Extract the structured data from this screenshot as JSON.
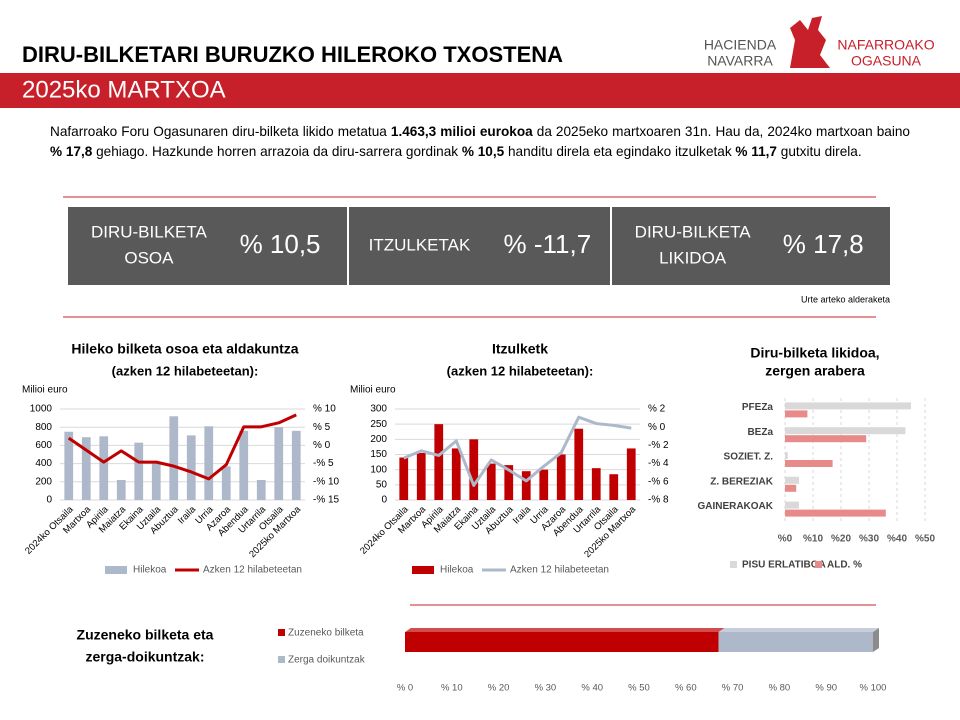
{
  "header": {
    "title": "DIRU-BILKETARI BURUZKO HILEROKO TXOSTENA",
    "subtitle": "2025ko MARTXOA",
    "logo_left": [
      "HACIENDA",
      "NAVARRA"
    ],
    "logo_right": [
      "NAFARROAKO",
      "OGASUNA"
    ]
  },
  "intro": [
    "Nafarroako Foru Ogasunaren diru-bilketa likido metatua ",
    "1.463,3 milioi eurokoa",
    " da 2025eko martxoaren 31n. Hau da, 2024ko martxoan baino ",
    "% 17,8",
    " gehiago. Hazkunde horren arrazoia da diru-sarrera gordinak ",
    "% 10,5",
    " handitu direla eta egindako itzulketak ",
    "% 11,7",
    " gutxitu direla."
  ],
  "kpis": [
    {
      "label": [
        "DIRU-BILKETA",
        "OSOA"
      ],
      "value": "% 10,5"
    },
    {
      "label": [
        "ITZULKETAK"
      ],
      "value": "% -11,7"
    },
    {
      "label": [
        "DIRU-BILKETA",
        "LIKIDOA"
      ],
      "value": "% 17,8"
    }
  ],
  "kpi_note": "Urte arteko alderaketa",
  "chart_data": [
    {
      "type": "combo",
      "title": [
        "Hileko bilketa osoa eta aldakuntza",
        "(azken 12 hilabeteetan):"
      ],
      "y_label": "Milioi euro",
      "categories": [
        "2024ko Otsaila",
        "Martxoa",
        "Apirila",
        "Maiatza",
        "Ekaina",
        "Uztaila",
        "Abuztua",
        "Iraila",
        "Urria",
        "Azaroa",
        "Abendua",
        "Urtarrila",
        "Otsaila",
        "2025ko Martxoa"
      ],
      "series": [
        {
          "name": "Hilekoa",
          "color": "#adb9ca",
          "mark": "bar",
          "values": [
            750,
            690,
            700,
            220,
            630,
            420,
            920,
            710,
            810,
            370,
            760,
            220,
            800,
            760
          ]
        },
        {
          "name": "Azken 12 hilabeteetan",
          "color": "#c00000",
          "mark": "line",
          "axis": "y2",
          "values": [
            2.0,
            -1.3,
            -4.6,
            -1.5,
            -4.6,
            -4.6,
            -5.7,
            -7.3,
            -9.2,
            -5.3,
            5.1,
            5.1,
            6.2,
            8.4
          ]
        }
      ],
      "ylim": [
        0,
        1000
      ],
      "yticks": [
        0,
        200,
        400,
        600,
        800,
        1000
      ],
      "y2lim": [
        -15,
        10
      ],
      "y2ticks": [
        {
          "value": 10,
          "label": "% 10"
        },
        {
          "value": 5,
          "label": "% 5"
        },
        {
          "value": 0,
          "label": "% 0"
        },
        {
          "value": -5,
          "label": "-% 5"
        },
        {
          "value": -10,
          "label": "-% 10"
        },
        {
          "value": -15,
          "label": "-% 15"
        }
      ],
      "grid": true
    },
    {
      "type": "combo",
      "title": [
        "Itzulketk",
        "(azken 12 hilabeteetan):"
      ],
      "y_label": "Milioi euro",
      "categories": [
        "2024ko Otsaila",
        "Martxoa",
        "Apirila",
        "Maiatza",
        "Ekaina",
        "Uztaila",
        "Abuztua",
        "Iraila",
        "Urria",
        "Azaroa",
        "Abendua",
        "Urtarrila",
        "Otsaila",
        "2025ko Martxoa"
      ],
      "series": [
        {
          "name": "Hilekoa",
          "color": "#c00000",
          "mark": "bar",
          "values": [
            140,
            155,
            250,
            170,
            200,
            120,
            115,
            95,
            100,
            150,
            235,
            105,
            85,
            170
          ]
        },
        {
          "name": "Azken 12 hilabeteetan",
          "color": "#adb9ca",
          "mark": "line",
          "axis": "y2",
          "values": [
            -3.4,
            -2.6,
            -3.1,
            -1.5,
            -6.4,
            -3.6,
            -4.7,
            -5.9,
            -4.3,
            -2.8,
            1.1,
            0.4,
            0.2,
            -0.1
          ]
        }
      ],
      "ylim": [
        0,
        300
      ],
      "yticks": [
        0,
        50,
        100,
        150,
        200,
        250,
        300
      ],
      "y2lim": [
        -8,
        2
      ],
      "y2ticks": [
        {
          "value": 2,
          "label": "% 2"
        },
        {
          "value": 0,
          "label": "% 0"
        },
        {
          "value": -2,
          "label": "-% 2"
        },
        {
          "value": -4,
          "label": "-% 4"
        },
        {
          "value": -6,
          "label": "-% 6"
        },
        {
          "value": -8,
          "label": "-% 8"
        }
      ],
      "grid": true
    },
    {
      "type": "hbar",
      "title": [
        "Diru-bilketa likidoa,",
        "zergen arabera"
      ],
      "categories": [
        "PFEZa",
        "BEZa",
        "SOZIET. Z.",
        "Z. BEREZIAK",
        "GAINERAKOAK"
      ],
      "series": [
        {
          "name": "PISU ERLATIBOA",
          "color": "#d9d9d9",
          "values": [
            45,
            43,
            1,
            5,
            5
          ]
        },
        {
          "name": "ALD. %",
          "color": "#e88a8a",
          "values": [
            8,
            29,
            17,
            4,
            36
          ]
        }
      ],
      "xlim": [
        0,
        50
      ],
      "xticks": [
        {
          "value": 0,
          "label": "%0"
        },
        {
          "value": 10,
          "label": "%10"
        },
        {
          "value": 20,
          "label": "%20"
        },
        {
          "value": 30,
          "label": "%30"
        },
        {
          "value": 40,
          "label": "%40"
        },
        {
          "value": 50,
          "label": "%50"
        }
      ],
      "grid": true
    },
    {
      "type": "stacked",
      "title": [
        "Zuzeneko bilketa eta",
        "zerga-doikuntzak:"
      ],
      "series": [
        {
          "name": "Zuzeneko bilketa",
          "color": "#c00000",
          "values": [
            67
          ]
        },
        {
          "name": "Zerga doikuntzak",
          "color": "#adb9ca",
          "values": [
            33
          ]
        }
      ],
      "xlim": [
        0,
        100
      ],
      "xticks": [
        {
          "value": 0,
          "label": "% 0"
        },
        {
          "value": 10,
          "label": "% 10"
        },
        {
          "value": 20,
          "label": "% 20"
        },
        {
          "value": 30,
          "label": "% 30"
        },
        {
          "value": 40,
          "label": "% 40"
        },
        {
          "value": 50,
          "label": "% 50"
        },
        {
          "value": 60,
          "label": "% 60"
        },
        {
          "value": 70,
          "label": "% 70"
        },
        {
          "value": 80,
          "label": "% 80"
        },
        {
          "value": 90,
          "label": "% 90"
        },
        {
          "value": 100,
          "label": "% 100"
        }
      ]
    }
  ]
}
